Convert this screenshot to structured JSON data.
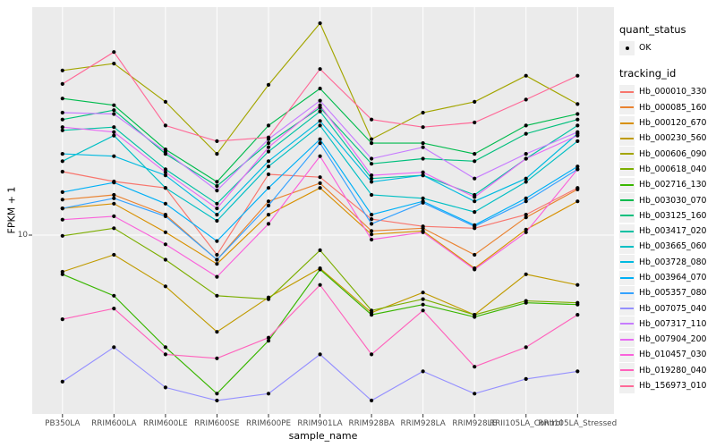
{
  "figure": {
    "y_axis": {
      "title": "FPKM + 1",
      "tick_label": "10",
      "scale": "log10"
    },
    "x_axis": {
      "title": "sample_name"
    },
    "legend": {
      "quant_status": {
        "title": "quant_status",
        "items": [
          {
            "label": "OK"
          }
        ]
      },
      "tracking_id": {
        "title": "tracking_id"
      }
    },
    "panel": {
      "bg": "#ebebeb",
      "grid_color": "#ffffff",
      "tick_color": "#333333",
      "point_color": "#000000"
    }
  },
  "chart_data": {
    "type": "line",
    "title": "",
    "xlabel": "sample_name",
    "ylabel": "FPKM + 1",
    "yscale": "log10",
    "ylim": [
      1,
      250
    ],
    "ytick_values": [
      10
    ],
    "legend_position": "right",
    "grid": "major",
    "categories": [
      "PB350LA",
      "RRIM600LA",
      "RRIM600LE",
      "RRIM600SE",
      "RRIM600PE",
      "RRIM901LA",
      "RRIM928BA",
      "RRIM928LA",
      "RRIM928LE",
      "RRII105LA_Control",
      "RRII105LA_Stressed"
    ],
    "quant_status": "OK",
    "series": [
      {
        "name": "Hb_000010_330",
        "color": "#F8766D",
        "values": [
          24.2,
          21.1,
          19.3,
          7.6,
          23.3,
          22.4,
          12.5,
          11.3,
          11.0,
          13.3,
          19.3
        ]
      },
      {
        "name": "Hb_000085_160",
        "color": "#EA8331",
        "values": [
          16.4,
          17.5,
          13.3,
          7.1,
          16.0,
          20.6,
          10.6,
          11.0,
          7.6,
          12.8,
          18.9
        ]
      },
      {
        "name": "Hb_000120_670",
        "color": "#D89000",
        "values": [
          14.5,
          15.5,
          10.4,
          6.7,
          13.3,
          19.3,
          10.1,
          10.6,
          6.3,
          10.8,
          16.0
        ]
      },
      {
        "name": "Hb_000230_560",
        "color": "#C09B00",
        "values": [
          6.0,
          7.6,
          4.9,
          2.6,
          4.2,
          6.3,
          3.4,
          4.5,
          3.3,
          5.8,
          5.0
        ]
      },
      {
        "name": "Hb_000606_090",
        "color": "#A3A500",
        "values": [
          99,
          109,
          64,
          31,
          81,
          191,
          38,
          55,
          64,
          92,
          62
        ]
      },
      {
        "name": "Hb_000618_040",
        "color": "#7CAE00",
        "values": [
          9.9,
          11.0,
          7.1,
          4.3,
          4.1,
          8.1,
          3.5,
          4.1,
          3.3,
          4.0,
          3.9
        ]
      },
      {
        "name": "Hb_002716_130",
        "color": "#39B600",
        "values": [
          5.8,
          4.3,
          2.1,
          1.1,
          2.3,
          6.2,
          3.3,
          3.8,
          3.2,
          3.9,
          3.8
        ]
      },
      {
        "name": "Hb_003030_070",
        "color": "#00BB4E",
        "values": [
          67,
          61,
          33,
          21,
          46,
          77,
          36,
          36,
          31,
          46,
          54
        ]
      },
      {
        "name": "Hb_003125_160",
        "color": "#00BF7D",
        "values": [
          50,
          57,
          31,
          19.8,
          36,
          59,
          27,
          29,
          28,
          41,
          50
        ]
      },
      {
        "name": "Hb_003417_020",
        "color": "#00C1A3",
        "values": [
          43,
          45,
          25,
          15.5,
          32,
          56,
          22,
          23,
          17.5,
          29,
          46
        ]
      },
      {
        "name": "Hb_003665_060",
        "color": "#00BFC4",
        "values": [
          28,
          40,
          19.3,
          12.2,
          26,
          46,
          17.5,
          16.7,
          13.8,
          21,
          37
        ]
      },
      {
        "name": "Hb_003728_080",
        "color": "#00BAE0",
        "values": [
          31,
          30,
          23,
          13.3,
          28,
          49,
          21,
          23,
          16,
          22,
          41
        ]
      },
      {
        "name": "Hb_003964_070",
        "color": "#00B0F6",
        "values": [
          18.2,
          20.8,
          15.5,
          9.2,
          19.3,
          38,
          13.3,
          16,
          11.5,
          16.7,
          26
        ]
      },
      {
        "name": "Hb_005357_080",
        "color": "#35A2FF",
        "values": [
          14.5,
          16.7,
          13,
          7.1,
          15.1,
          36,
          11.7,
          15.7,
          11.3,
          16,
          25
        ]
      },
      {
        "name": "Hb_007075_040",
        "color": "#9590FF",
        "values": [
          1.3,
          2.1,
          1.2,
          1.0,
          1.1,
          1.9,
          1.0,
          1.5,
          1.1,
          1.35,
          1.5
        ]
      },
      {
        "name": "Hb_007317_110",
        "color": "#C77CFF",
        "values": [
          55,
          54,
          32,
          18.6,
          38,
          65,
          29,
          34,
          22,
          31,
          42
        ]
      },
      {
        "name": "Hb_007904_200",
        "color": "#E76BF3",
        "values": [
          45,
          42,
          24,
          14.5,
          34,
          61,
          23,
          24,
          17,
          29,
          40
        ]
      },
      {
        "name": "Hb_010457_030",
        "color": "#FA62DB",
        "values": [
          12.4,
          13,
          8.8,
          5.6,
          11.7,
          30,
          9.4,
          10.4,
          6.2,
          10.4,
          25
        ]
      },
      {
        "name": "Hb_019280_040",
        "color": "#FF62BC",
        "values": [
          3.1,
          3.6,
          1.9,
          1.8,
          2.4,
          5.0,
          1.9,
          3.5,
          1.6,
          2.1,
          3.3
        ]
      },
      {
        "name": "Hb_156973_010",
        "color": "#FF6A98",
        "values": [
          82,
          128,
          46,
          37,
          39,
          101,
          50,
          45,
          48,
          66,
          92
        ]
      }
    ]
  }
}
